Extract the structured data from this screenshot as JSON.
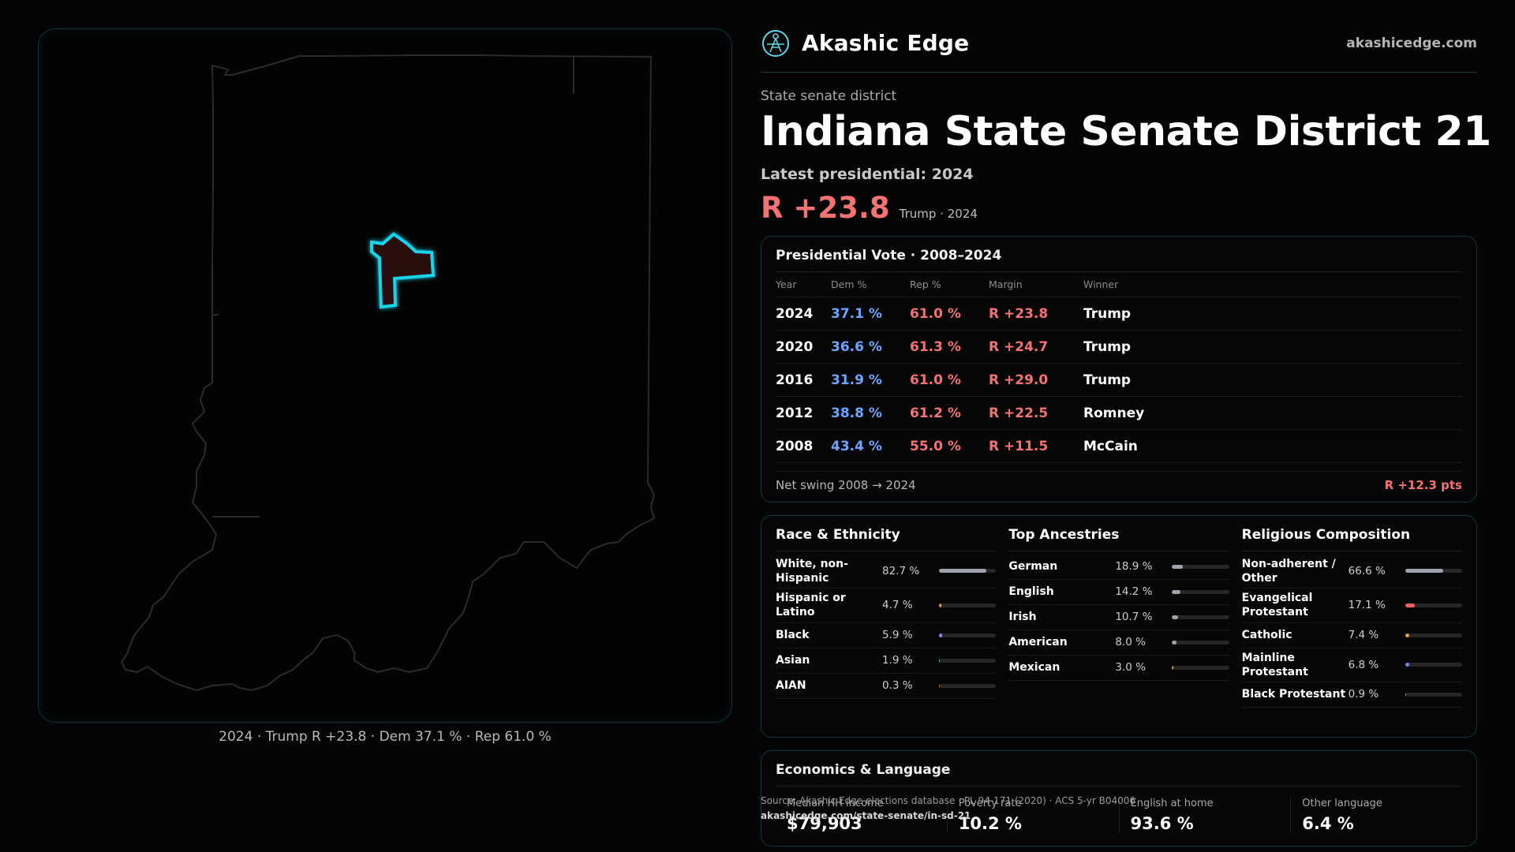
{
  "brand": {
    "name": "Akashic Edge",
    "url": "akashicedge.com",
    "logo_icon": "akashic-edge-logo-icon"
  },
  "header": {
    "kicker": "State senate district",
    "title": "Indiana State Senate District 21",
    "latest": "Latest presidential: 2024",
    "margin": "R +23.8",
    "margin_sub": "Trump · 2024"
  },
  "map": {
    "caption": "2024 · Trump R +23.8 · Dem 37.1 % · Rep 61.0 %",
    "state_outline_color": "#2a2a2a",
    "district_outline_color": "#19d4ea",
    "district_fill_color": "#2a0a0c"
  },
  "presidential": {
    "title": "Presidential Vote · 2008–2024",
    "columns": [
      "Year",
      "Dem %",
      "Rep %",
      "Margin",
      "Winner"
    ],
    "rows": [
      {
        "year": "2024",
        "dem": "37.1 %",
        "rep": "61.0 %",
        "margin": "R +23.8",
        "winner": "Trump"
      },
      {
        "year": "2020",
        "dem": "36.6 %",
        "rep": "61.3 %",
        "margin": "R +24.7",
        "winner": "Trump"
      },
      {
        "year": "2016",
        "dem": "31.9 %",
        "rep": "61.0 %",
        "margin": "R +29.0",
        "winner": "Trump"
      },
      {
        "year": "2012",
        "dem": "38.8 %",
        "rep": "61.2 %",
        "margin": "R +22.5",
        "winner": "Romney"
      },
      {
        "year": "2008",
        "dem": "43.4 %",
        "rep": "55.0 %",
        "margin": "R +11.5",
        "winner": "McCain"
      }
    ],
    "swing_label": "Net swing 2008 → 2024",
    "swing_value": "R +12.3 pts"
  },
  "race": {
    "title": "Race & Ethnicity",
    "items": [
      {
        "label": "White, non-Hispanic",
        "value": "82.7 %",
        "pct": 82.7,
        "color": "#9ea3ad"
      },
      {
        "label": "Hispanic or Latino",
        "value": "4.7 %",
        "pct": 4.7,
        "color": "#e0a040"
      },
      {
        "label": "Black",
        "value": "5.9 %",
        "pct": 5.9,
        "color": "#8a8af0"
      },
      {
        "label": "Asian",
        "value": "1.9 %",
        "pct": 1.9,
        "color": "#3fc7b5"
      },
      {
        "label": "AIAN",
        "value": "0.3 %",
        "pct": 0.3,
        "color": "#d0703a"
      }
    ]
  },
  "ancestry": {
    "title": "Top Ancestries",
    "items": [
      {
        "label": "German",
        "value": "18.9 %",
        "pct": 18.9,
        "color": "#9ea3ad"
      },
      {
        "label": "English",
        "value": "14.2 %",
        "pct": 14.2,
        "color": "#9ea3ad"
      },
      {
        "label": "Irish",
        "value": "10.7 %",
        "pct": 10.7,
        "color": "#9ea3ad"
      },
      {
        "label": "American",
        "value": "8.0 %",
        "pct": 8.0,
        "color": "#9ea3ad"
      },
      {
        "label": "Mexican",
        "value": "3.0 %",
        "pct": 3.0,
        "color": "#e0a040"
      }
    ]
  },
  "religion": {
    "title": "Religious Composition",
    "items": [
      {
        "label": "Non-adherent / Other",
        "value": "66.6 %",
        "pct": 66.6,
        "color": "#9ea3ad"
      },
      {
        "label": "Evangelical Protestant",
        "value": "17.1 %",
        "pct": 17.1,
        "color": "#f06060"
      },
      {
        "label": "Catholic",
        "value": "7.4 %",
        "pct": 7.4,
        "color": "#e0a040"
      },
      {
        "label": "Mainline Protestant",
        "value": "6.8 %",
        "pct": 6.8,
        "color": "#5f8cf0"
      },
      {
        "label": "Black Protestant",
        "value": "0.9 %",
        "pct": 0.9,
        "color": "#9ea3ad"
      }
    ]
  },
  "economics": {
    "title": "Economics & Language",
    "items": [
      {
        "label": "Median HH income",
        "value": "$79,903"
      },
      {
        "label": "Poverty rate",
        "value": "10.2 %"
      },
      {
        "label": "English at home",
        "value": "93.6 %"
      },
      {
        "label": "Other language",
        "value": "6.4 %"
      }
    ]
  },
  "footer": {
    "source": "Source: Akashic Edge elections database · PL 94-171 (2020) · ACS 5-yr B04006",
    "url": "akashicedge.com/state-senate/in-sd-21"
  }
}
